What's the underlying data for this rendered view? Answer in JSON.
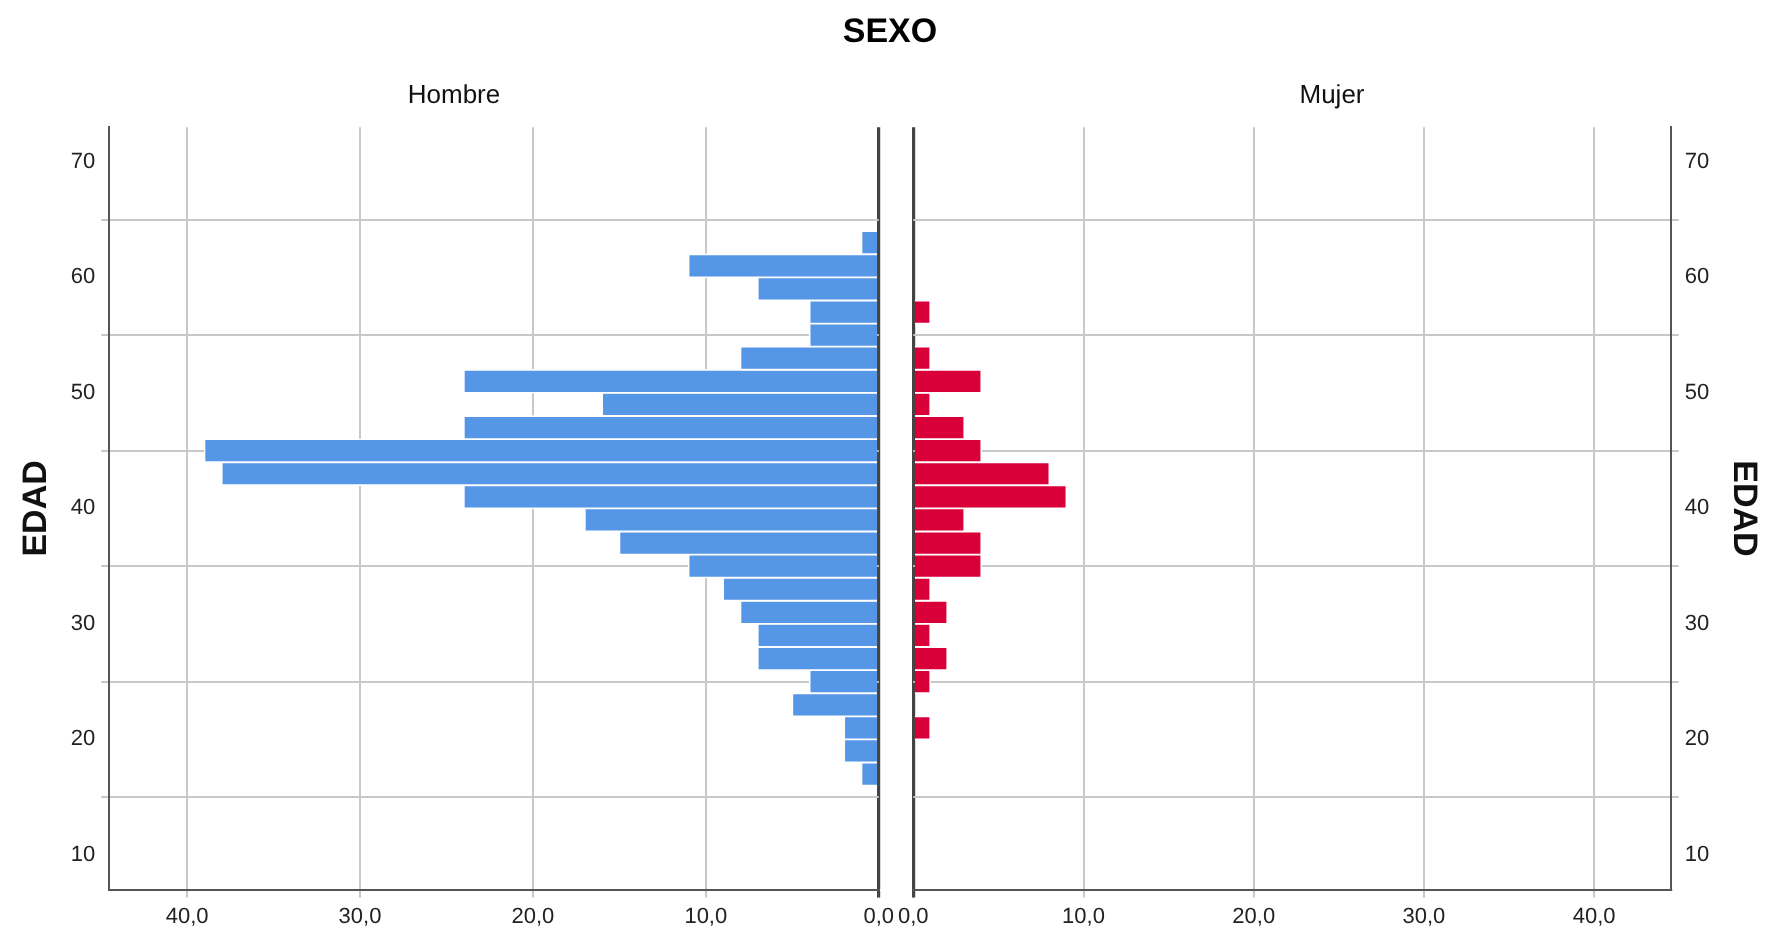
{
  "chart_data": [
    {
      "type": "histogram",
      "orientation": "horizontal",
      "title": "Hombre",
      "ylabel": "EDAD",
      "annotations": [
        "SEXO"
      ],
      "color": "#5596e6",
      "bins": [
        16,
        18,
        20,
        22,
        24,
        26,
        28,
        30,
        32,
        34,
        36,
        38,
        40,
        42,
        44,
        46,
        48,
        50,
        52,
        54,
        56,
        58,
        60,
        62,
        64
      ],
      "values": [
        1,
        2,
        2,
        5,
        4,
        7,
        7,
        8,
        9,
        11,
        15,
        17,
        24,
        38,
        39,
        24,
        16,
        24,
        8,
        4,
        4,
        7,
        11,
        1
      ],
      "xlim": [
        44.5,
        0
      ],
      "xticks": [
        {
          "value": 40,
          "label": "40,0"
        },
        {
          "value": 30,
          "label": "30,0"
        },
        {
          "value": 20,
          "label": "20,0"
        },
        {
          "value": 10,
          "label": "10,0"
        },
        {
          "value": 0,
          "label": "0,0"
        }
      ],
      "ylim": [
        7,
        73
      ],
      "yticks": [
        10,
        20,
        30,
        40,
        50,
        60,
        70
      ],
      "grid": true,
      "legend": false
    },
    {
      "type": "histogram",
      "orientation": "horizontal",
      "title": "Mujer",
      "ylabel": "EDAD",
      "color": "#d9003a",
      "bins": [
        16,
        18,
        20,
        22,
        24,
        26,
        28,
        30,
        32,
        34,
        36,
        38,
        40,
        42,
        44,
        46,
        48,
        50,
        52,
        54,
        56,
        58,
        60,
        62,
        64
      ],
      "values": [
        0,
        0,
        1,
        0,
        1,
        2,
        1,
        2,
        1,
        4,
        4,
        3,
        9,
        8,
        4,
        3,
        1,
        4,
        1,
        0,
        1,
        0,
        0,
        0
      ],
      "xlim": [
        0,
        44.5
      ],
      "xticks": [
        {
          "value": 0,
          "label": "0,0"
        },
        {
          "value": 10,
          "label": "10,0"
        },
        {
          "value": 20,
          "label": "20,0"
        },
        {
          "value": 30,
          "label": "30,0"
        },
        {
          "value": 40,
          "label": "40,0"
        }
      ],
      "ylim": [
        7,
        73
      ],
      "yticks": [
        10,
        20,
        30,
        40,
        50,
        60,
        70
      ],
      "grid": true,
      "legend": false
    }
  ]
}
